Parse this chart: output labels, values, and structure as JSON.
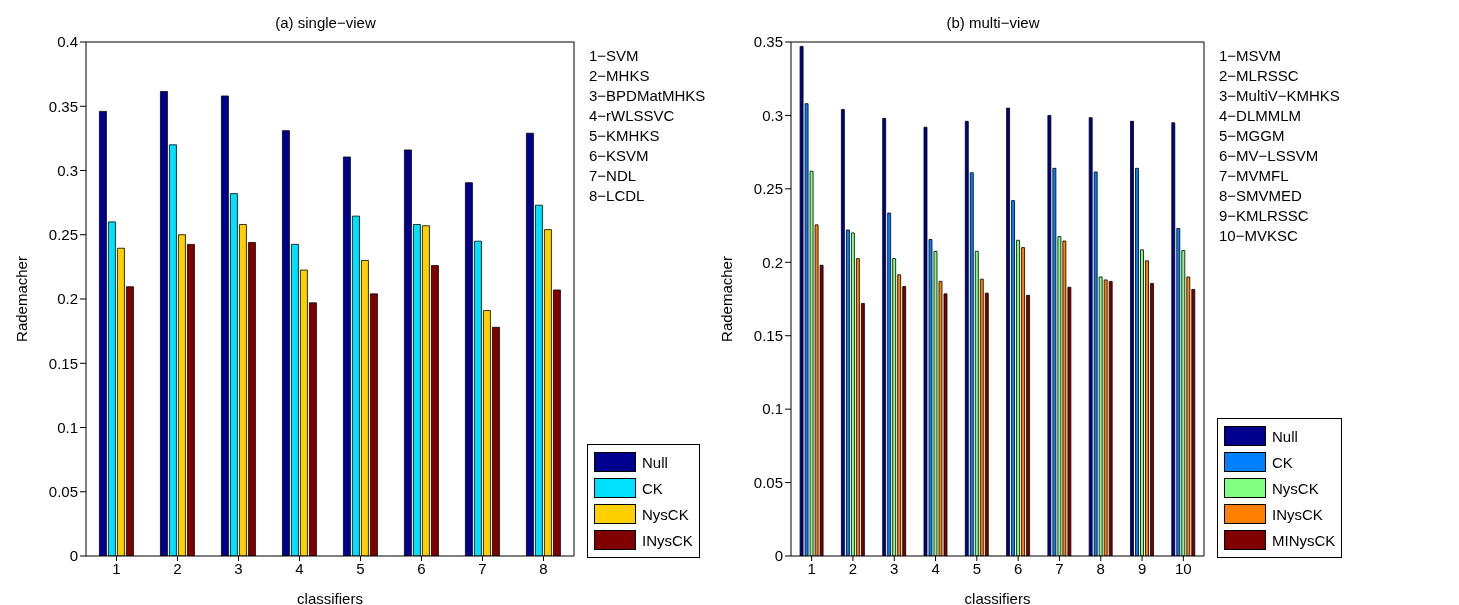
{
  "chart_data": [
    {
      "type": "bar",
      "title": "(a) single−view",
      "xlabel": "classifiers",
      "ylabel": "Rademacher",
      "categories": [
        "1",
        "2",
        "3",
        "4",
        "5",
        "6",
        "7",
        "8"
      ],
      "series": [
        {
          "name": "Null",
          "color": "#00008f",
          "values": [
            0.346,
            0.3615,
            0.358,
            0.331,
            0.3105,
            0.316,
            0.2905,
            0.329
          ]
        },
        {
          "name": "CK",
          "color": "#00e0ff",
          "values": [
            0.26,
            0.32,
            0.282,
            0.2425,
            0.2645,
            0.258,
            0.245,
            0.273
          ]
        },
        {
          "name": "NysCK",
          "color": "#ffd000",
          "values": [
            0.2395,
            0.25,
            0.258,
            0.2225,
            0.23,
            0.257,
            0.191,
            0.254
          ]
        },
        {
          "name": "INysCK",
          "color": "#800000",
          "values": [
            0.2095,
            0.2425,
            0.244,
            0.197,
            0.204,
            0.226,
            0.178,
            0.207
          ]
        }
      ],
      "ylim": [
        0,
        0.4
      ],
      "yticks": [
        0,
        0.05,
        0.1,
        0.15,
        0.2,
        0.25,
        0.3,
        0.35,
        0.4
      ],
      "grid": false,
      "legend": "bottom right",
      "annotations": [
        "1−SVM",
        "2−MHKS",
        "3−BPDMatMHKS",
        "4−rWLSSVC",
        "5−KMHKS",
        "6−KSVM",
        "7−NDL",
        "8−LCDL"
      ]
    },
    {
      "type": "bar",
      "title": "(b) multi−view",
      "xlabel": "classifiers",
      "ylabel": "Rademacher",
      "categories": [
        "1",
        "2",
        "3",
        "4",
        "5",
        "6",
        "7",
        "8",
        "9",
        "10"
      ],
      "series": [
        {
          "name": "Null",
          "color": "#00008f",
          "values": [
            0.347,
            0.304,
            0.298,
            0.292,
            0.296,
            0.305,
            0.3,
            0.2985,
            0.296,
            0.295
          ]
        },
        {
          "name": "CK",
          "color": "#0080ff",
          "values": [
            0.308,
            0.222,
            0.2335,
            0.2155,
            0.261,
            0.242,
            0.264,
            0.2615,
            0.264,
            0.223
          ]
        },
        {
          "name": "NysCK",
          "color": "#80ff80",
          "values": [
            0.262,
            0.22,
            0.2025,
            0.2075,
            0.2075,
            0.215,
            0.2175,
            0.19,
            0.2085,
            0.208
          ]
        },
        {
          "name": "INysCK",
          "color": "#ff8000",
          "values": [
            0.2255,
            0.2025,
            0.1915,
            0.187,
            0.1885,
            0.21,
            0.2145,
            0.188,
            0.201,
            0.19
          ]
        },
        {
          "name": "MINysCK",
          "color": "#800000",
          "values": [
            0.198,
            0.172,
            0.1835,
            0.1785,
            0.179,
            0.1775,
            0.183,
            0.187,
            0.1855,
            0.1815
          ]
        }
      ],
      "ylim": [
        0,
        0.35
      ],
      "yticks": [
        0,
        0.05,
        0.1,
        0.15,
        0.2,
        0.25,
        0.3,
        0.35
      ],
      "grid": false,
      "legend": "bottom right",
      "annotations": [
        "1−MSVM",
        "2−MLRSSC",
        "3−MultiV−KMHKS",
        "4−DLMMLM",
        "5−MGGM",
        "6−MV−LSSVM",
        "7−MVMFL",
        "8−SMVMED",
        "9−KMLRSSC",
        "10−MVKSC"
      ]
    }
  ]
}
